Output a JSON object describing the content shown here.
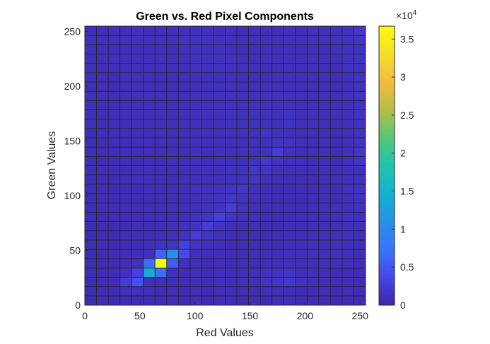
{
  "chart_data": {
    "type": "heatmap",
    "title": "Green vs. Red Pixel Components",
    "xlabel": "Red Values",
    "ylabel": "Green Values",
    "xlim": [
      0,
      255
    ],
    "ylim": [
      0,
      255
    ],
    "xticks": [
      0,
      50,
      100,
      150,
      200,
      250
    ],
    "yticks": [
      0,
      50,
      100,
      150,
      200,
      250
    ],
    "x_bins": 24,
    "y_bins": 30,
    "colormap": "parula",
    "colorbar": {
      "range": [
        0,
        36700
      ],
      "ticks": [
        0,
        0.5,
        1,
        1.5,
        2,
        2.5,
        3,
        3.5
      ],
      "exponent_label": "×10",
      "exponent": "4"
    },
    "z_rows_from_bottom": [
      [
        700,
        800,
        750,
        800,
        750,
        800,
        750,
        900,
        800,
        850,
        800,
        900,
        850,
        800,
        850,
        800,
        900,
        850,
        800,
        750,
        800,
        750,
        800,
        900
      ],
      [
        800,
        850,
        900,
        1000,
        1100,
        1000,
        900,
        850,
        800,
        900,
        850,
        900,
        1000,
        900,
        950,
        1000,
        1100,
        1000,
        900,
        850,
        900,
        900,
        850,
        900
      ],
      [
        750,
        800,
        900,
        2500,
        4500,
        1200,
        1000,
        900,
        850,
        900,
        900,
        1000,
        1000,
        1100,
        1200,
        1500,
        1800,
        2000,
        1400,
        1000,
        900,
        900,
        850,
        800
      ],
      [
        700,
        800,
        900,
        1200,
        3000,
        14000,
        7000,
        1200,
        900,
        900,
        900,
        900,
        1000,
        1000,
        1200,
        1300,
        1400,
        1500,
        1200,
        1000,
        900,
        900,
        800,
        800
      ],
      [
        700,
        750,
        800,
        900,
        1100,
        7000,
        36700,
        5500,
        1100,
        900,
        900,
        900,
        900,
        1000,
        1000,
        1000,
        1000,
        1100,
        1100,
        1000,
        1000,
        1100,
        1000,
        800
      ],
      [
        700,
        750,
        800,
        900,
        1000,
        1200,
        6000,
        11000,
        4000,
        1200,
        1000,
        900,
        900,
        900,
        1000,
        1000,
        1000,
        1100,
        1100,
        1200,
        1200,
        1100,
        1000,
        900
      ],
      [
        700,
        750,
        800,
        850,
        900,
        1000,
        1300,
        1600,
        3000,
        1500,
        1200,
        1000,
        900,
        900,
        1000,
        1000,
        900,
        1000,
        1000,
        1100,
        1200,
        1200,
        1100,
        900
      ],
      [
        700,
        750,
        800,
        850,
        900,
        950,
        1000,
        1200,
        1500,
        2600,
        1600,
        1200,
        1000,
        900,
        1000,
        900,
        900,
        1000,
        1000,
        1000,
        1100,
        1200,
        1200,
        1000
      ],
      [
        800,
        800,
        800,
        850,
        900,
        950,
        1000,
        1100,
        1300,
        1500,
        2500,
        1600,
        1200,
        1000,
        900,
        900,
        900,
        1000,
        1000,
        1000,
        1000,
        1100,
        1200,
        1100
      ],
      [
        800,
        800,
        850,
        850,
        900,
        950,
        1000,
        1000,
        1100,
        1300,
        1500,
        2800,
        1500,
        1100,
        1000,
        900,
        900,
        900,
        1000,
        1000,
        1000,
        1100,
        1300,
        1200
      ],
      [
        800,
        850,
        850,
        900,
        900,
        950,
        1000,
        1000,
        1100,
        1200,
        1300,
        1500,
        2500,
        1400,
        1100,
        1000,
        900,
        900,
        900,
        1000,
        1000,
        1100,
        1200,
        1300
      ],
      [
        850,
        850,
        900,
        900,
        950,
        950,
        1000,
        1000,
        1100,
        1100,
        1200,
        1400,
        1800,
        1600,
        1200,
        1000,
        900,
        900,
        900,
        1000,
        1000,
        1000,
        1200,
        1400
      ],
      [
        850,
        900,
        900,
        950,
        950,
        1000,
        1000,
        1050,
        1100,
        1100,
        1200,
        1300,
        1500,
        2000,
        1300,
        1000,
        950,
        900,
        900,
        950,
        1000,
        1000,
        1100,
        1400
      ],
      [
        900,
        900,
        950,
        950,
        1000,
        1000,
        1000,
        1050,
        1100,
        1100,
        1200,
        1200,
        1300,
        1400,
        1700,
        1200,
        1000,
        950,
        900,
        950,
        1000,
        1000,
        1100,
        1300
      ],
      [
        900,
        900,
        950,
        950,
        1000,
        1000,
        1050,
        1050,
        1100,
        1100,
        1150,
        1200,
        1300,
        1400,
        1800,
        1600,
        1100,
        1000,
        950,
        950,
        1000,
        1000,
        1100,
        1200
      ],
      [
        900,
        950,
        950,
        1000,
        1000,
        1000,
        1050,
        1100,
        1100,
        1100,
        1150,
        1200,
        1250,
        1300,
        1400,
        2000,
        1500,
        1100,
        1000,
        950,
        1000,
        1000,
        1100,
        1600
      ],
      [
        950,
        950,
        1000,
        1000,
        1000,
        1050,
        1050,
        1100,
        1100,
        1150,
        1150,
        1200,
        1200,
        1300,
        1300,
        1400,
        2500,
        1300,
        1000,
        1000,
        1000,
        1000,
        1100,
        1700
      ],
      [
        950,
        950,
        1000,
        1000,
        1050,
        1050,
        1100,
        1100,
        1100,
        1150,
        1200,
        1200,
        1200,
        1250,
        1300,
        1300,
        1600,
        1500,
        1100,
        1000,
        1000,
        1000,
        1100,
        1400
      ],
      [
        950,
        1000,
        1000,
        1000,
        1050,
        1050,
        1100,
        1100,
        1150,
        1150,
        1200,
        1200,
        1200,
        1250,
        1300,
        1800,
        1300,
        1200,
        1100,
        1000,
        1000,
        1050,
        1100,
        1300
      ],
      [
        1000,
        1000,
        1000,
        1050,
        1050,
        1100,
        1100,
        1100,
        1150,
        1150,
        1200,
        1200,
        1250,
        1250,
        1300,
        1300,
        1300,
        1500,
        1200,
        1100,
        1050,
        1050,
        1100,
        1300
      ],
      [
        1000,
        1000,
        1050,
        1050,
        1050,
        1100,
        1100,
        1150,
        1150,
        1200,
        1200,
        1200,
        1250,
        1250,
        1300,
        1300,
        1300,
        1300,
        1200,
        1100,
        1100,
        1100,
        1150,
        1400
      ],
      [
        1000,
        1000,
        1050,
        1050,
        1100,
        1100,
        1100,
        1150,
        1150,
        1200,
        1200,
        1250,
        1250,
        1300,
        1300,
        1300,
        1250,
        1200,
        1200,
        1150,
        1100,
        1100,
        1150,
        1300
      ],
      [
        1000,
        1050,
        1050,
        1050,
        1100,
        1100,
        1150,
        1150,
        1200,
        1200,
        1200,
        1250,
        1250,
        1300,
        1300,
        1250,
        1250,
        1200,
        1200,
        1150,
        1150,
        1100,
        1200,
        1300
      ],
      [
        1000,
        1050,
        1050,
        1100,
        1100,
        1100,
        1150,
        1150,
        1200,
        1200,
        1250,
        1250,
        1300,
        1300,
        1250,
        1250,
        1200,
        1200,
        1200,
        1150,
        1150,
        1150,
        1200,
        1400
      ],
      [
        1050,
        1050,
        1050,
        1100,
        1100,
        1150,
        1150,
        1200,
        1200,
        1200,
        1250,
        1250,
        1300,
        1250,
        1250,
        1200,
        1200,
        1200,
        1150,
        1150,
        1150,
        1150,
        1250,
        1400
      ],
      [
        1050,
        1050,
        1100,
        1100,
        1100,
        1150,
        1150,
        1200,
        1200,
        1250,
        1250,
        1250,
        1250,
        1250,
        1200,
        1200,
        1200,
        1150,
        1150,
        1150,
        1150,
        1200,
        1250,
        1300
      ],
      [
        1050,
        1100,
        1100,
        1100,
        1150,
        1150,
        1200,
        1200,
        1200,
        1250,
        1250,
        1250,
        1250,
        1200,
        1200,
        1200,
        1150,
        1150,
        1150,
        1150,
        1200,
        1200,
        1250,
        1400
      ],
      [
        1100,
        1100,
        1100,
        1150,
        1150,
        1150,
        1200,
        1200,
        1250,
        1250,
        1250,
        1250,
        1200,
        1200,
        1200,
        1150,
        1150,
        1150,
        1150,
        1200,
        1200,
        1250,
        1300,
        1400
      ],
      [
        1100,
        1100,
        1150,
        1150,
        1150,
        1200,
        1200,
        1200,
        1250,
        1250,
        1250,
        1200,
        1200,
        1200,
        1150,
        1150,
        1150,
        1150,
        1200,
        1200,
        1250,
        1250,
        1300,
        1500
      ],
      [
        1100,
        1150,
        1150,
        1150,
        1200,
        1200,
        1200,
        1250,
        1250,
        1250,
        1200,
        1200,
        1200,
        1150,
        1150,
        1150,
        1150,
        1200,
        1200,
        1250,
        1250,
        1300,
        1400,
        1900
      ]
    ]
  }
}
